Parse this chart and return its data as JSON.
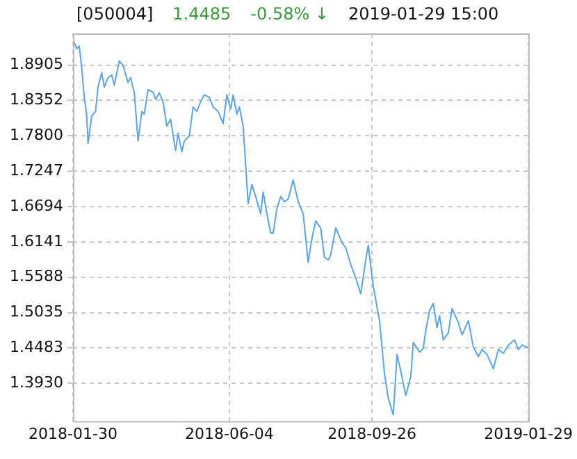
{
  "chart_data": {
    "type": "line",
    "annotations": [
      "[050004]",
      "1.4485",
      "-0.58% ↓",
      "2019-01-29 15:00"
    ],
    "xlim": [
      "2018-01-30",
      "2019-01-29"
    ],
    "xticks": [
      "2018-01-30",
      "2018-06-04",
      "2018-09-26",
      "2019-01-29"
    ],
    "ylim": [
      1.334,
      1.94
    ],
    "yticks": [
      {
        "value": 1.393,
        "label": "1.3930"
      },
      1.4483,
      1.5035,
      1.5588,
      1.6141,
      1.6694,
      1.7247,
      {
        "value": 1.78,
        "label": "1.7800"
      },
      1.8352,
      1.8905
    ],
    "grid": true,
    "legend": false,
    "marker": "none",
    "line_style": "solid",
    "series": [
      {
        "color": "#5aa5f0",
        "x": [
          "2018-01-30",
          "2018-02-02",
          "2018-02-04",
          "2018-02-06",
          "2018-02-08",
          "2018-02-10",
          "2018-02-11",
          "2018-02-14",
          "2018-02-17",
          "2018-02-19",
          "2018-02-22",
          "2018-02-24",
          "2018-02-27",
          "2018-03-02",
          "2018-03-04",
          "2018-03-08",
          "2018-03-11",
          "2018-03-15",
          "2018-03-17",
          "2018-03-20",
          "2018-03-23",
          "2018-03-26",
          "2018-03-28",
          "2018-03-31",
          "2018-04-04",
          "2018-04-06",
          "2018-04-09",
          "2018-04-12",
          "2018-04-15",
          "2018-04-18",
          "2018-04-22",
          "2018-04-24",
          "2018-04-27",
          "2018-04-29",
          "2018-05-03",
          "2018-05-06",
          "2018-05-09",
          "2018-05-12",
          "2018-05-15",
          "2018-05-19",
          "2018-05-22",
          "2018-05-26",
          "2018-05-30",
          "2018-06-02",
          "2018-06-05",
          "2018-06-07",
          "2018-06-10",
          "2018-06-12",
          "2018-06-15",
          "2018-06-19",
          "2018-06-22",
          "2018-06-25",
          "2018-06-29",
          "2018-07-01",
          "2018-07-04",
          "2018-07-07",
          "2018-07-09",
          "2018-07-12",
          "2018-07-15",
          "2018-07-18",
          "2018-07-21",
          "2018-07-25",
          "2018-07-29",
          "2018-08-02",
          "2018-08-06",
          "2018-08-09",
          "2018-08-12",
          "2018-08-16",
          "2018-08-19",
          "2018-08-22",
          "2018-08-24",
          "2018-08-28",
          "2018-09-02",
          "2018-09-05",
          "2018-09-09",
          "2018-09-14",
          "2018-09-17",
          "2018-09-21",
          "2018-09-23",
          "2018-09-27",
          "2018-10-02",
          "2018-10-06",
          "2018-10-09",
          "2018-10-13",
          "2018-10-16",
          "2018-10-19",
          "2018-10-23",
          "2018-10-27",
          "2018-10-29",
          "2018-11-03",
          "2018-11-06",
          "2018-11-08",
          "2018-11-11",
          "2018-11-14",
          "2018-11-17",
          "2018-11-19",
          "2018-11-22",
          "2018-11-26",
          "2018-11-29",
          "2018-12-04",
          "2018-12-07",
          "2018-12-12",
          "2018-12-16",
          "2018-12-20",
          "2018-12-23",
          "2018-12-27",
          "2019-01-01",
          "2019-01-05",
          "2019-01-09",
          "2019-01-13",
          "2019-01-18",
          "2019-01-21",
          "2019-01-24",
          "2019-01-29"
        ],
        "values": [
          1.931,
          1.916,
          1.92,
          1.886,
          1.84,
          1.811,
          1.768,
          1.811,
          1.818,
          1.856,
          1.879,
          1.856,
          1.871,
          1.875,
          1.859,
          1.897,
          1.89,
          1.863,
          1.871,
          1.848,
          1.772,
          1.818,
          1.814,
          1.852,
          1.848,
          1.837,
          1.847,
          1.833,
          1.795,
          1.806,
          1.757,
          1.784,
          1.755,
          1.772,
          1.78,
          1.825,
          1.818,
          1.833,
          1.844,
          1.84,
          1.825,
          1.818,
          1.799,
          1.844,
          1.822,
          1.844,
          1.814,
          1.825,
          1.795,
          1.674,
          1.704,
          1.685,
          1.658,
          1.692,
          1.658,
          1.628,
          1.628,
          1.666,
          1.685,
          1.677,
          1.681,
          1.711,
          1.677,
          1.658,
          1.582,
          1.62,
          1.647,
          1.636,
          1.59,
          1.586,
          1.594,
          1.636,
          1.613,
          1.605,
          1.579,
          1.552,
          1.533,
          1.586,
          1.609,
          1.545,
          1.491,
          1.408,
          1.37,
          1.344,
          1.438,
          1.412,
          1.374,
          1.404,
          1.457,
          1.442,
          1.448,
          1.476,
          1.507,
          1.518,
          1.48,
          1.499,
          1.461,
          1.472,
          1.51,
          1.488,
          1.469,
          1.491,
          1.45,
          1.435,
          1.446,
          1.438,
          1.416,
          1.446,
          1.44,
          1.453,
          1.461,
          1.446,
          1.453,
          1.4485
        ]
      }
    ]
  }
}
